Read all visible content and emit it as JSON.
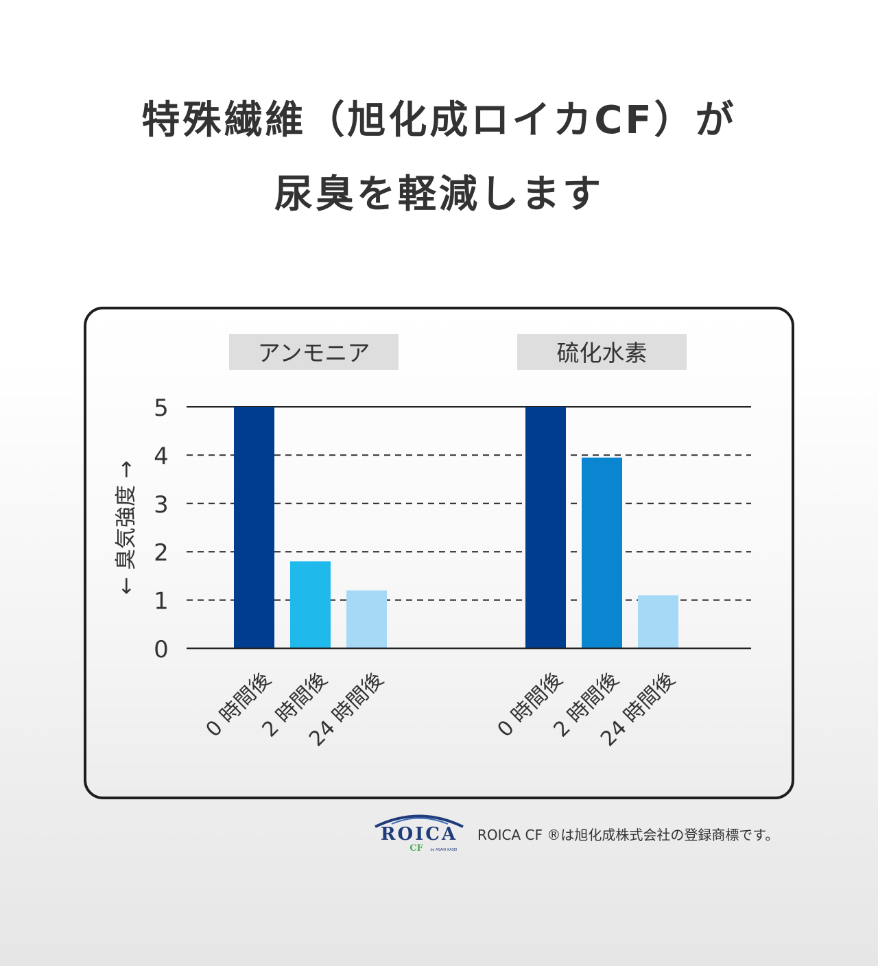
{
  "headline": {
    "line1": "特殊繊維（旭化成ロイカCF）が",
    "line2": "尿臭を軽減します"
  },
  "colors": {
    "dark_blue": "#003c8f",
    "mid_blue": "#0a86d0",
    "cyan": "#1fb9ec",
    "light_blue": "#a6d9f5",
    "group_label_bg": "#dedede"
  },
  "chart_data": {
    "type": "bar",
    "ylabel": "← 臭気強度 →",
    "ylim": [
      0,
      5
    ],
    "yticks": [
      "0",
      "1",
      "2",
      "3",
      "4",
      "5"
    ],
    "grid": "dashed horizontal at 1–4, solid at 5",
    "groups": [
      {
        "name": "アンモニア",
        "categories": [
          "0 時間後",
          "2 時間後",
          "24 時間後"
        ],
        "values": [
          5,
          1.8,
          1.2
        ],
        "colors": [
          "#003c8f",
          "#1fb9ec",
          "#a6d9f5"
        ]
      },
      {
        "name": "硫化水素",
        "categories": [
          "0 時間後",
          "2 時間後",
          "24 時間後"
        ],
        "values": [
          5,
          3.95,
          1.1
        ],
        "colors": [
          "#003c8f",
          "#0a86d0",
          "#a6d9f5"
        ]
      }
    ]
  },
  "footer": {
    "logo_text": "ROICA",
    "logo_sub": "CF",
    "logo_by": "by ASAHI KASEI",
    "trademark": "ROICA CF ®は旭化成株式会社の登録商標です。"
  }
}
